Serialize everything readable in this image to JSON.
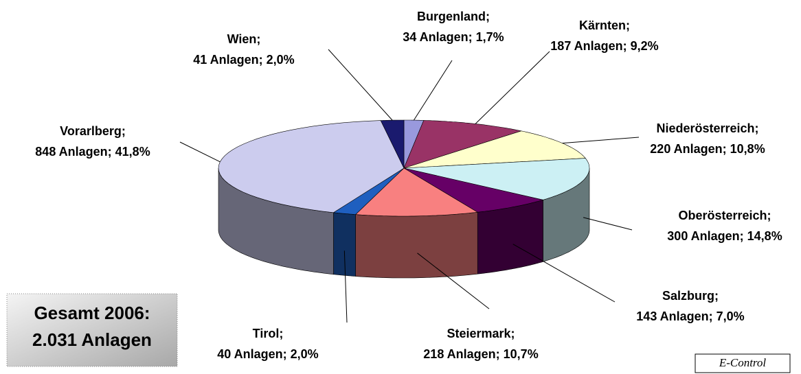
{
  "chart_data": {
    "type": "pie",
    "three_d": true,
    "categories": [
      "Burgenland;",
      "Kärnten;",
      "Niederösterreich;",
      "Oberösterreich;",
      "Salzburg;",
      "Steiermark;",
      "Tirol;",
      "Vorarlberg;",
      "Wien;"
    ],
    "values": [
      1.7,
      9.2,
      10.8,
      14.8,
      7.0,
      10.7,
      2.0,
      41.8,
      2.0
    ],
    "value_labels": [
      "34 Anlagen; 1,7%",
      "187 Anlagen; 9,2%",
      "220 Anlagen; 10,8%",
      "300 Anlagen; 14,8%",
      "143 Anlagen; 7,0%",
      "218 Anlagen; 10,7%",
      "40 Anlagen; 2,0%",
      "848 Anlagen; 41,8%",
      "41 Anlagen; 2,0%"
    ],
    "colors": [
      "#9999dd",
      "#993366",
      "#ffffcc",
      "#ccf0f4",
      "#660066",
      "#f88080",
      "#1f5fbf",
      "#ccccee",
      "#1a1a6e"
    ],
    "annotation": [
      "Gesamt 2006:",
      "2.031 Anlagen"
    ],
    "source": "E-Control"
  }
}
